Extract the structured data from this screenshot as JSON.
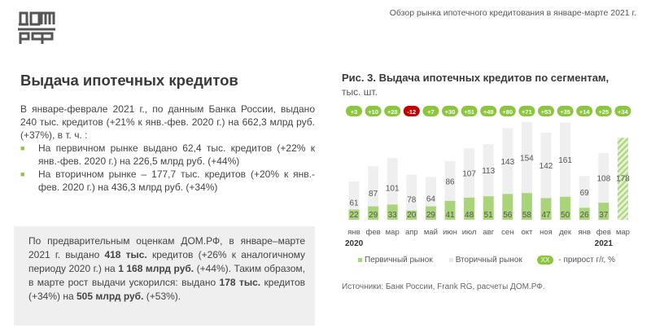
{
  "header": {
    "report_title": "Обзор рынка ипотечного кредитования в январе-марте 2021 г.",
    "logo": "ДОМ РФ"
  },
  "main": {
    "title": "Выдача ипотечных кредитов",
    "intro": "В январе-феврале 2021 г., по данным Банка России, выдано 240 тыс. кредитов (+21% к янв.-фев. 2020 г.) на 662,3 млрд руб. (+37%), в т. ч. :",
    "bullets": [
      "На первичном рынке выдано 62,4 тыс. кредитов (+22% к янв.-фев. 2020 г.) на 226,5 млрд руб. (+44%)",
      "На вторичном рынке – 177,7 тыс. кредитов (+20% к янв.-фев. 2020 г.) на 436,3 млрд руб. (+34%)"
    ],
    "box": {
      "p1": "По предварительным оценкам ДОМ.РФ, в январе–марте 2021 г. выдано ",
      "b1": "418 тыс.",
      "p2": " кредитов (+26% к аналогичному периоду 2020 г.) на ",
      "b2": "1 168 млрд руб.",
      "p3": " (+44%). Таким образом, в марте рост выдачи ускорился: выдано ",
      "b3": "178 тыс.",
      "p4": " кредитов (+34%) на ",
      "b4": "505 млрд руб.",
      "p5": " (+53%)."
    }
  },
  "chart_data": {
    "type": "bar",
    "title": "Рис. 3. Выдача ипотечных кредитов по сегментам,",
    "unit": "тыс. шт.",
    "categories": [
      "янв",
      "фев",
      "мар",
      "апр",
      "май",
      "июн",
      "июл",
      "авг",
      "сен",
      "окт",
      "ноя",
      "дек",
      "янв",
      "фев",
      "мар"
    ],
    "year_labels": [
      "2020",
      "2021"
    ],
    "series": [
      {
        "name": "Первичный рынок",
        "color": "#a9d47a",
        "values": [
          22,
          29,
          33,
          20,
          29,
          41,
          48,
          51,
          56,
          58,
          47,
          50,
          26,
          37,
          null
        ]
      },
      {
        "name": "Вторичный рынок",
        "color": "#efefef",
        "values": [
          61,
          87,
          101,
          78,
          64,
          86,
          107,
          113,
          143,
          154,
          142,
          161,
          69,
          108,
          null
        ]
      }
    ],
    "estimate_total": {
      "category_index": 14,
      "value": 178,
      "note": "hatched"
    },
    "growth_yoy": [
      "+3",
      "+10",
      "+28",
      "-12",
      "+7",
      "+30",
      "+51",
      "+49",
      "+80",
      "+71",
      "+53",
      "+35",
      "+14",
      "+25",
      "+34"
    ],
    "growth_legend": {
      "pill": "XX",
      "label": "- прирост г/г, %"
    },
    "colors": {
      "positive": "#8cc63f",
      "negative": "#c00000"
    }
  },
  "source": "Источники: Банк России, Frank RG, расчеты ДОМ.РФ."
}
